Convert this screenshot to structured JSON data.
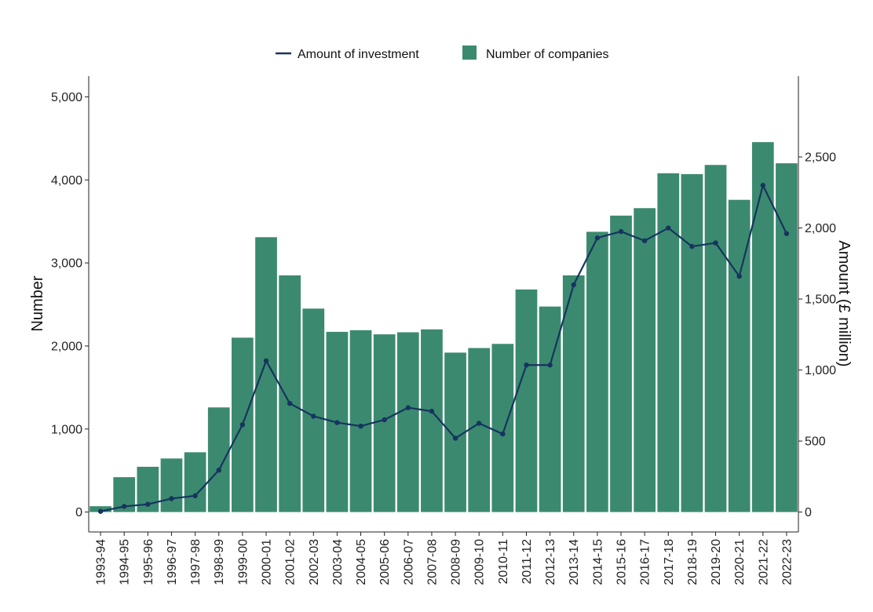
{
  "chart_data": {
    "type": "bar",
    "title": "",
    "categories": [
      "1993-94",
      "1994-95",
      "1995-96",
      "1996-97",
      "1997-98",
      "1998-99",
      "1999-00",
      "2000-01",
      "2001-02",
      "2002-03",
      "2003-04",
      "2004-05",
      "2005-06",
      "2006-07",
      "2007-08",
      "2008-09",
      "2009-10",
      "2010-11",
      "2011-12",
      "2012-13",
      "2013-14",
      "2014-15",
      "2015-16",
      "2016-17",
      "2017-18",
      "2018-19",
      "2019-20",
      "2020-21",
      "2021-22",
      "2022-23"
    ],
    "series": [
      {
        "name": "Number of companies",
        "type": "bar",
        "axis": "left",
        "color": "#3b8a6f",
        "values": [
          70,
          420,
          545,
          645,
          720,
          1260,
          2100,
          3310,
          2850,
          2450,
          2170,
          2190,
          2140,
          2165,
          2200,
          1920,
          1975,
          2025,
          2680,
          2475,
          2850,
          3375,
          3570,
          3660,
          4080,
          4070,
          4180,
          3760,
          4455,
          4200
        ]
      },
      {
        "name": "Amount of investment",
        "type": "line",
        "axis": "right",
        "color": "#17345f",
        "values": [
          5,
          40,
          55,
          95,
          115,
          295,
          615,
          1065,
          765,
          675,
          630,
          605,
          650,
          735,
          710,
          520,
          625,
          550,
          1035,
          1035,
          1600,
          1930,
          1975,
          1910,
          2000,
          1870,
          1895,
          1660,
          2300,
          1960
        ]
      }
    ],
    "legend": {
      "position": "top",
      "entries": [
        {
          "label": "Amount of investment",
          "kind": "line",
          "color": "#17345f"
        },
        {
          "label": "Number of companies",
          "kind": "bar",
          "color": "#3b8a6f"
        }
      ]
    },
    "ylabel": "Number",
    "y2label": "Amount (£ million)",
    "xlabel": "",
    "ylim": [
      -240,
      5250
    ],
    "y2lim": [
      -140,
      3069
    ],
    "yticks": [
      0,
      1000,
      2000,
      3000,
      4000,
      5000
    ],
    "yticks_labels": [
      "0",
      "1,000",
      "2,000",
      "3,000",
      "4,000",
      "5,000"
    ],
    "y2ticks": [
      0,
      500,
      1000,
      1500,
      2000,
      2500
    ],
    "y2ticks_labels": [
      "0",
      "500",
      "1,000",
      "1,500",
      "2,000",
      "2,500"
    ],
    "grid": false
  }
}
